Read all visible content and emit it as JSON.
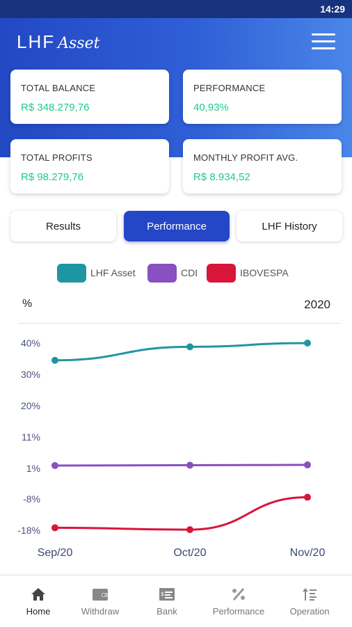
{
  "status_bar": {
    "time": "14:29"
  },
  "header": {
    "logo_main": "LHF",
    "logo_script": "Asset"
  },
  "cards": [
    {
      "label": "TOTAL BALANCE",
      "value": "R$ 348.279,76"
    },
    {
      "label": "PERFORMANCE",
      "value": "40,93%"
    },
    {
      "label": "TOTAL PROFITS",
      "value": "R$ 98.279,76"
    },
    {
      "label": "MONTHLY PROFIT AVG.",
      "value": "R$ 8.934,52"
    }
  ],
  "tabs": [
    {
      "label": "Results",
      "active": false
    },
    {
      "label": "Performance",
      "active": true
    },
    {
      "label": "LHF History",
      "active": false
    }
  ],
  "colors": {
    "accent": "#2546c7",
    "value_green": "#20c98c",
    "lhf_asset": "#1f95a4",
    "cdi": "#8a4fc0",
    "ibovespa": "#d8163a"
  },
  "chart_data": {
    "type": "line",
    "unit_label": "%",
    "year_label": "2020",
    "categories": [
      "Sep/20",
      "Oct/20",
      "Nov/20"
    ],
    "y_ticks": [
      "40%",
      "30%",
      "20%",
      "11%",
      "1%",
      "-8%",
      "-18%"
    ],
    "series": [
      {
        "name": "LHF Asset",
        "color": "#1f95a4",
        "values": [
          34.5,
          38.8,
          40.5
        ]
      },
      {
        "name": "CDI",
        "color": "#8a4fc0",
        "values": [
          1.9,
          2.0,
          2.1
        ]
      },
      {
        "name": "IBOVESPA",
        "color": "#d8163a",
        "values": [
          -17.2,
          -17.8,
          -7.5
        ]
      }
    ],
    "grid": false,
    "legend_position": "top-center"
  },
  "bottom_nav": [
    {
      "label": "Home",
      "icon": "home-icon",
      "active": true
    },
    {
      "label": "Withdraw",
      "icon": "wallet-icon",
      "active": false
    },
    {
      "label": "Bank",
      "icon": "bank-icon",
      "active": false
    },
    {
      "label": "Performance",
      "icon": "percent-icon",
      "active": false
    },
    {
      "label": "Operation",
      "icon": "sort-icon",
      "active": false
    }
  ]
}
